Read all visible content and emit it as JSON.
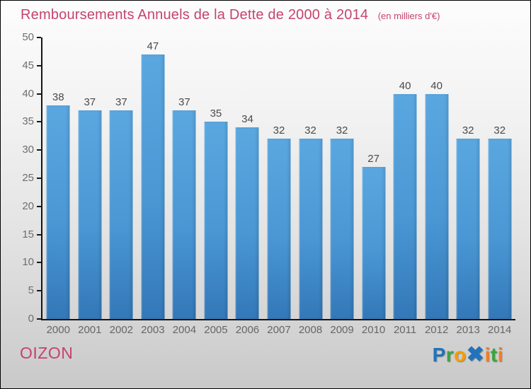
{
  "page": {
    "title": "Remboursements Annuels de la Dette de 2000 à 2014",
    "subtitle": "(en milliers d'€)"
  },
  "chart_data": {
    "type": "bar",
    "title": "Remboursements Annuels de la Dette de 2000 à 2014",
    "subtitle": "(en milliers d'€)",
    "categories": [
      "2000",
      "2001",
      "2002",
      "2003",
      "2004",
      "2005",
      "2006",
      "2007",
      "2008",
      "2009",
      "2010",
      "2011",
      "2012",
      "2013",
      "2014"
    ],
    "values": [
      38,
      37,
      37,
      47,
      37,
      35,
      34,
      32,
      32,
      32,
      27,
      40,
      40,
      32,
      32
    ],
    "ylabel": "",
    "xlabel": "",
    "ylim": [
      0,
      50
    ],
    "ytick_step": 5,
    "grid": false,
    "legend": false,
    "bar_value_labels_shown": true
  },
  "footer": {
    "commune": "OIZON",
    "logo_name": "Proxiti",
    "logo_letters": [
      {
        "ch": "P",
        "color": "#2173bc"
      },
      {
        "ch": "r",
        "color": "#3aa440"
      },
      {
        "ch": "o",
        "color": "#f59c00"
      },
      {
        "ch": "✖",
        "color": "#2173bc"
      },
      {
        "ch": "i",
        "color": "#f57d1f"
      },
      {
        "ch": "t",
        "color": "#3aa440"
      },
      {
        "ch": "i",
        "color": "#f57d1f"
      }
    ]
  },
  "colors": {
    "title_text": "#c5446b",
    "commune_text": "#c5446b",
    "bar_gradient_top": "#5aa7e0",
    "bar_gradient_bottom": "#3378b8",
    "axis_line": "#151515",
    "y_tick_label": "#6e6e6e",
    "x_tick_label": "#666666",
    "bar_value_label": "#4a4a4a",
    "background_top": "#fdfdfd",
    "background_bottom": "#c9c9c9"
  }
}
